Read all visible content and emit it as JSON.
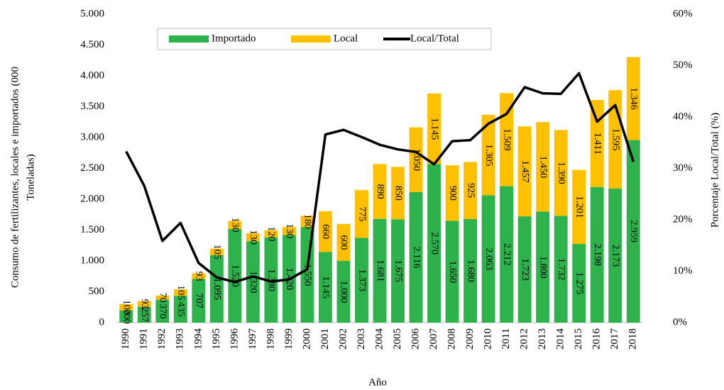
{
  "chart_data": {
    "type": "bar",
    "stacked": true,
    "xlabel": "Año",
    "ylabel": [
      "Consumo de fertilizantes,  locales e importados  (000",
      "Toneladas)"
    ],
    "y2label": "Porcentaje Local/Total (%)",
    "categories": [
      "1990",
      "1991",
      "1992",
      "1993",
      "1994",
      "1995",
      "1996",
      "1997",
      "1998",
      "1999",
      "2000",
      "2001",
      "2002",
      "2003",
      "2004",
      "2005",
      "2006",
      "2007",
      "2008",
      "2009",
      "2010",
      "2011",
      "2012",
      "2013",
      "2014",
      "2015",
      "2016",
      "2017",
      "2018"
    ],
    "series": [
      {
        "name": "Importado",
        "color": "#2eb24c",
        "values": [
          200,
          257,
          370,
          435,
          707,
          1095,
          1520,
          1320,
          1380,
          1420,
          1550,
          1145,
          1000,
          1373,
          1681,
          1675,
          2116,
          2570,
          1650,
          1680,
          2063,
          2212,
          1723,
          1800,
          1732,
          1275,
          2198,
          2173,
          2959
        ],
        "value_labels": [
          "200",
          "257",
          "370",
          "435",
          "707",
          "1.095",
          "1.520",
          "1.320",
          "1.380",
          "1.420",
          "1.550",
          "1.145",
          "1.000",
          "1.373",
          "1.681",
          "1.675",
          "2.116",
          "2.570",
          "1.650",
          "1.680",
          "2.063",
          "2.212",
          "1.723",
          "1.800",
          "1.732",
          "1.275",
          "2.198",
          "2.173",
          "2.959"
        ]
      },
      {
        "name": "Local",
        "color": "#ffc000",
        "values": [
          100,
          93,
          70,
          105,
          93,
          105,
          130,
          130,
          120,
          130,
          180,
          660,
          600,
          775,
          890,
          850,
          1050,
          1145,
          900,
          925,
          1305,
          1509,
          1457,
          1450,
          1390,
          1201,
          1411,
          1595,
          1346
        ],
        "value_labels": [
          "100",
          "93",
          "70",
          "105",
          "93",
          "105",
          "130",
          "130",
          "120",
          "130",
          "180",
          "660",
          "600",
          "775",
          "890",
          "850",
          "1.050",
          "1.145",
          "900",
          "925",
          "1.305",
          "1.509",
          "1.457",
          "1.450",
          "1.390",
          "1.201",
          "1.411",
          "1.595",
          "1.346"
        ]
      },
      {
        "name": "Local/Total",
        "color": "#000000",
        "type": "line",
        "axis": "y2",
        "values": [
          33.3,
          26.6,
          15.9,
          19.4,
          11.6,
          8.8,
          7.9,
          9.0,
          8.0,
          8.4,
          10.4,
          36.6,
          37.5,
          36.1,
          34.6,
          33.7,
          33.2,
          30.8,
          35.3,
          35.5,
          38.7,
          40.6,
          45.8,
          44.6,
          44.5,
          48.5,
          39.1,
          42.3,
          31.3
        ]
      }
    ],
    "ylim": [
      0,
      5000
    ],
    "yticks": [
      0,
      500,
      {
        "value": 1000,
        "label": "1.000"
      },
      {
        "value": 1500,
        "label": "1.500"
      },
      {
        "value": 2000,
        "label": "2.000"
      },
      {
        "value": 2500,
        "label": "2.500"
      },
      {
        "value": 3000,
        "label": "3.000"
      },
      {
        "value": 3500,
        "label": "3.500"
      },
      {
        "value": 4000,
        "label": "4.000"
      },
      {
        "value": 4500,
        "label": "4.500"
      },
      {
        "value": 5000,
        "label": "5.000"
      }
    ],
    "y2lim": [
      0,
      60
    ],
    "y2ticks": [
      {
        "value": 0,
        "label": "0%"
      },
      {
        "value": 10,
        "label": "10%"
      },
      {
        "value": 20,
        "label": "20%"
      },
      {
        "value": 30,
        "label": "30%"
      },
      {
        "value": 40,
        "label": "40%"
      },
      {
        "value": 50,
        "label": "50%"
      },
      {
        "value": 60,
        "label": "60%"
      }
    ],
    "legend": "top"
  }
}
